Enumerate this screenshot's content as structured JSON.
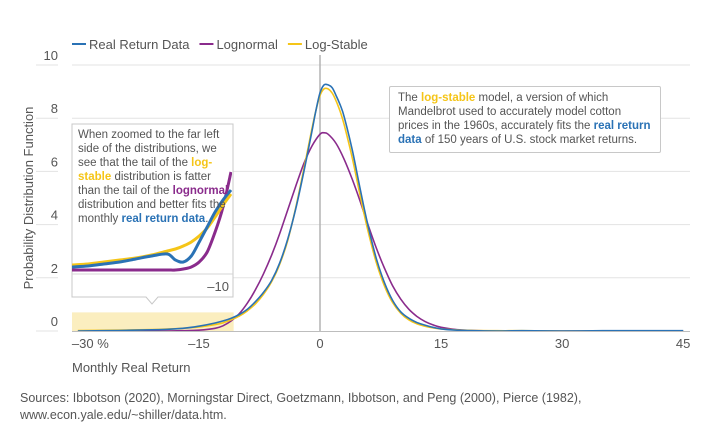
{
  "chart_data": {
    "type": "line",
    "title": "",
    "xlabel": "Monthly Real Return",
    "ylabel": "Probability Distribution Function",
    "xlim": [
      -30,
      45
    ],
    "ylim": [
      0,
      10
    ],
    "x_ticks": [
      {
        "value": -30,
        "label": "–30 %"
      },
      {
        "value": -15,
        "label": "–15"
      },
      {
        "value": 0,
        "label": "0"
      },
      {
        "value": 15,
        "label": "15"
      },
      {
        "value": 30,
        "label": "30"
      },
      {
        "value": 45,
        "label": "45"
      }
    ],
    "y_ticks": [
      {
        "value": 0,
        "label": "0"
      },
      {
        "value": 2,
        "label": "2"
      },
      {
        "value": 4,
        "label": "4"
      },
      {
        "value": 6,
        "label": "6"
      },
      {
        "value": 8,
        "label": "8"
      },
      {
        "value": 10,
        "label": "10"
      }
    ],
    "grid": "horizontal",
    "legend_position": "top-left",
    "series": [
      {
        "name": "Real Return Data",
        "color": "#2a72b5",
        "x": [
          -30,
          -25,
          -20,
          -17,
          -15,
          -13,
          -12,
          -11,
          -10,
          -9,
          -8,
          -7,
          -6,
          -5,
          -4,
          -3,
          -2,
          -1,
          -0.5,
          0,
          0.5,
          1,
          1.5,
          2,
          2.5,
          3,
          4,
          5,
          6,
          7,
          8,
          9,
          10,
          11,
          12,
          13,
          14,
          15,
          17,
          19,
          22,
          25,
          30,
          35,
          40,
          45
        ],
        "y": [
          0,
          0.02,
          0.05,
          0.1,
          0.18,
          0.3,
          0.38,
          0.48,
          0.62,
          0.82,
          1.1,
          1.45,
          1.9,
          2.55,
          3.45,
          4.6,
          6.0,
          7.5,
          8.3,
          8.95,
          9.25,
          9.25,
          9.15,
          8.85,
          8.5,
          8.05,
          6.8,
          5.3,
          3.9,
          2.7,
          1.8,
          1.15,
          0.72,
          0.48,
          0.32,
          0.22,
          0.14,
          0.08,
          0.03,
          0.01,
          0,
          0.01,
          0,
          0.01,
          0.01,
          0.01
        ]
      },
      {
        "name": "Lognormal",
        "color": "#8a2b8c",
        "x": [
          -30,
          -25,
          -20,
          -17,
          -15,
          -13,
          -12,
          -11,
          -10,
          -9,
          -8,
          -7,
          -6,
          -5,
          -4,
          -3,
          -2,
          -1,
          0,
          0.5,
          1,
          2,
          3,
          4,
          5,
          6,
          7,
          8,
          9,
          10,
          11,
          12,
          13,
          14,
          15,
          17,
          19,
          22,
          25,
          30,
          35,
          40,
          45
        ],
        "y": [
          0,
          0,
          0,
          0.01,
          0.03,
          0.1,
          0.2,
          0.38,
          0.65,
          1.05,
          1.55,
          2.15,
          2.85,
          3.65,
          4.55,
          5.45,
          6.3,
          6.95,
          7.4,
          7.45,
          7.4,
          7.05,
          6.45,
          5.7,
          4.85,
          3.95,
          3.1,
          2.35,
          1.7,
          1.2,
          0.82,
          0.55,
          0.36,
          0.23,
          0.14,
          0.05,
          0.02,
          0,
          0,
          0,
          0,
          0,
          0
        ]
      },
      {
        "name": "Log-Stable",
        "color": "#f5c518",
        "x": [
          -30,
          -25,
          -20,
          -17,
          -15,
          -13,
          -12,
          -11,
          -10,
          -9,
          -8,
          -7,
          -6,
          -5,
          -4,
          -3,
          -2,
          -1,
          -0.5,
          0,
          0.5,
          1,
          1.5,
          2,
          2.5,
          3,
          4,
          5,
          6,
          7,
          8,
          9,
          10,
          11,
          12,
          13,
          14,
          15,
          17,
          19,
          22,
          25,
          30,
          35,
          40,
          45
        ],
        "y": [
          0.02,
          0.03,
          0.06,
          0.1,
          0.15,
          0.24,
          0.31,
          0.42,
          0.56,
          0.76,
          1.02,
          1.38,
          1.85,
          2.5,
          3.4,
          4.65,
          6.1,
          7.6,
          8.3,
          8.85,
          9.1,
          9.1,
          8.95,
          8.65,
          8.25,
          7.75,
          6.5,
          5.05,
          3.7,
          2.55,
          1.68,
          1.07,
          0.67,
          0.42,
          0.27,
          0.18,
          0.12,
          0.08,
          0.04,
          0.02,
          0.01,
          0.01,
          0,
          0,
          0,
          0
        ]
      }
    ],
    "annotations": {
      "highlight_region": {
        "x_from": -32,
        "x_to": -10.7,
        "y_from": 0,
        "y_to": 0.7,
        "color": "#fbeebf"
      },
      "inset": {
        "description": "Zoomed view of the far-left tail",
        "x_tick_label": "–10",
        "text_segments": [
          {
            "text": "When zoomed to the far left side of the distributions, we see that the tail of the ",
            "style": "normal"
          },
          {
            "text": "log-stable",
            "style": "yellow"
          },
          {
            "text": " distribution is fatter than the tail of the ",
            "style": "normal"
          },
          {
            "text": "lognormal",
            "style": "purple"
          },
          {
            "text": " distribution and better fits the monthly ",
            "style": "normal"
          },
          {
            "text": "real return data",
            "style": "blue"
          },
          {
            "text": ".",
            "style": "normal"
          }
        ],
        "tail_series": {
          "x": [
            0,
            0.1,
            0.2,
            0.3,
            0.4,
            0.5,
            0.6,
            0.65,
            0.7,
            0.75,
            0.8,
            0.85,
            0.9,
            0.95,
            1.0
          ],
          "real_return": [
            0.05,
            0.06,
            0.08,
            0.1,
            0.13,
            0.16,
            0.18,
            0.12,
            0.1,
            0.16,
            0.3,
            0.45,
            0.6,
            0.72,
            0.82
          ],
          "lognormal": [
            0.02,
            0.02,
            0.02,
            0.02,
            0.02,
            0.02,
            0.02,
            0.02,
            0.03,
            0.05,
            0.1,
            0.2,
            0.4,
            0.65,
            1.0
          ],
          "log_stable": [
            0.07,
            0.08,
            0.1,
            0.12,
            0.14,
            0.17,
            0.21,
            0.23,
            0.26,
            0.3,
            0.36,
            0.44,
            0.55,
            0.67,
            0.78
          ]
        }
      },
      "callout_right": {
        "text_segments": [
          {
            "text": "The ",
            "style": "normal"
          },
          {
            "text": "log-stable",
            "style": "yellow"
          },
          {
            "text": " model, a version of which Mandelbrot used to accurately model cotton prices in the 1960s, accurately fits the ",
            "style": "normal"
          },
          {
            "text": "real return data",
            "style": "blue"
          },
          {
            "text": " of 150 years of U.S. stock market returns.",
            "style": "normal"
          }
        ]
      }
    }
  },
  "legend": {
    "items": [
      {
        "label": "Real Return Data",
        "color": "#2a72b5"
      },
      {
        "label": "Lognormal",
        "color": "#8a2b8c"
      },
      {
        "label": "Log-Stable",
        "color": "#f5c518"
      }
    ]
  },
  "sources": {
    "line1": "Sources: Ibbotson (2020), Morningstar Direct, Goetzmann, Ibbotson, and Peng (2000), Pierce (1982),",
    "line2": "www.econ.yale.edu/~shiller/data.htm."
  },
  "colors": {
    "grid": "#e3e3e3",
    "axis": "#bdbdbd",
    "zero_line": "#b3b3b3",
    "highlight": "#fbeebf",
    "text": "#555555"
  }
}
